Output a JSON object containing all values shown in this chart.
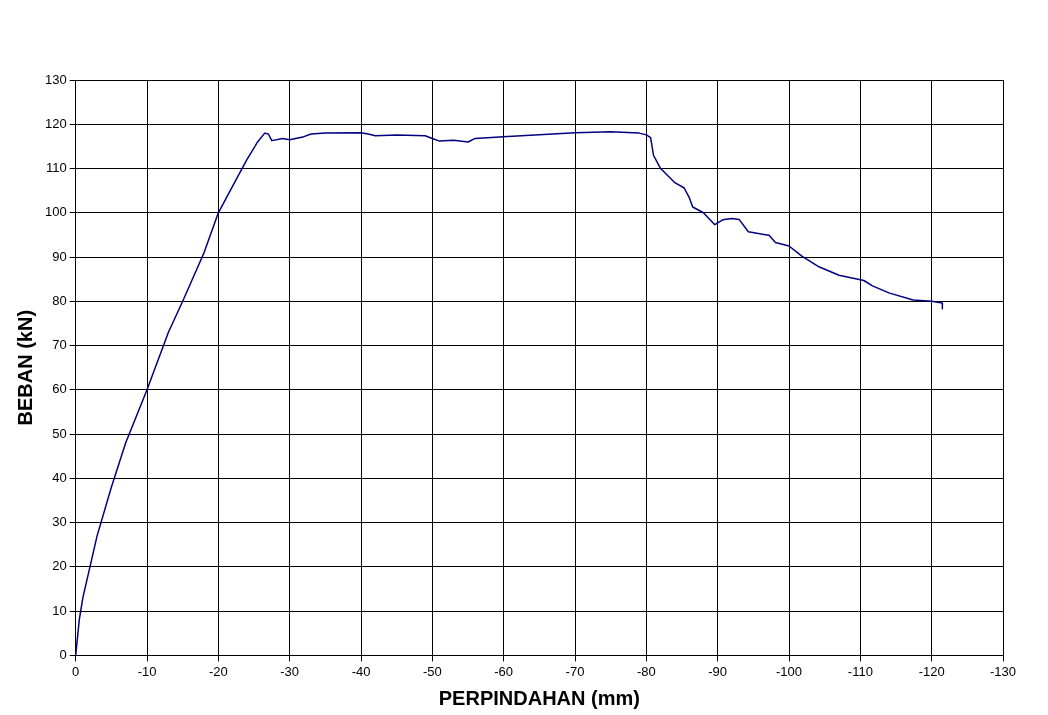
{
  "chart_data": {
    "type": "line",
    "xlabel": "PERPINDAHAN (mm)",
    "ylabel": "BEBAN (kN)",
    "xlim": [
      0,
      -130
    ],
    "xticks": [
      0,
      -10,
      -20,
      -30,
      -40,
      -50,
      -60,
      -70,
      -80,
      -90,
      -100,
      -110,
      -120,
      -130
    ],
    "ylim": [
      0,
      130
    ],
    "yticks": [
      0,
      10,
      20,
      30,
      40,
      50,
      60,
      70,
      80,
      90,
      100,
      110,
      120,
      130
    ],
    "grid": true,
    "legend": false,
    "marker": "none",
    "line_style": "solid",
    "series": [
      {
        "color": "#000080",
        "x": [
          0,
          -0.5,
          -1,
          -2,
          -3,
          -5,
          -7,
          -10,
          -13,
          -15,
          -18,
          -20,
          -22,
          -24,
          -25.5,
          -26.5,
          -27,
          -27.5,
          -29,
          -30,
          -32,
          -33,
          -35,
          -40,
          -41,
          -42,
          -45,
          -49,
          -50,
          -51,
          -53,
          -55,
          -56,
          -60,
          -70,
          -75,
          -79,
          -80,
          -80.6,
          -81,
          -82,
          -84,
          -85.3,
          -86,
          -86.5,
          -88,
          -89.6,
          -90.7,
          -92,
          -93,
          -94.3,
          -97.2,
          -98.1,
          -100,
          -101.8,
          -104.2,
          -107,
          -110.5,
          -111.7,
          -114,
          -117.4,
          -120,
          -121.5,
          -121.5
        ],
        "values": [
          0,
          8,
          13,
          20,
          27,
          38,
          48,
          60,
          73,
          80,
          91,
          100,
          106,
          112,
          116,
          118,
          117.8,
          116.3,
          116.8,
          116.5,
          117.2,
          117.8,
          118,
          118.1,
          117.8,
          117.4,
          117.6,
          117.4,
          116.8,
          116.2,
          116.4,
          116,
          116.8,
          117.2,
          118.1,
          118.3,
          118,
          117.6,
          117,
          113,
          110,
          106.8,
          105.6,
          103.5,
          101.3,
          100,
          97.3,
          98.4,
          98.7,
          98.5,
          95.7,
          94.9,
          93.3,
          92.5,
          90.2,
          87.8,
          85.9,
          84.7,
          83.5,
          81.9,
          80.3,
          80,
          79.6,
          78.3
        ]
      }
    ]
  }
}
